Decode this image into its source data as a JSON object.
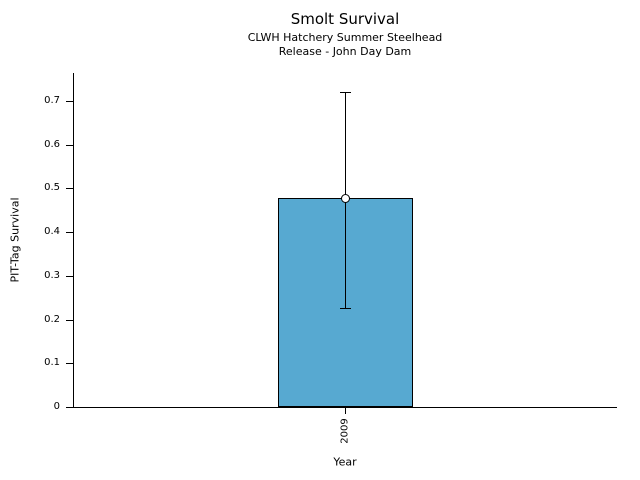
{
  "chart_data": {
    "type": "bar",
    "title": "Smolt Survival",
    "subtitle1": "CLWH Hatchery Summer Steelhead",
    "subtitle2": "Release - John Day Dam",
    "xlabel": "Year",
    "ylabel": "PIT-Tag Survival",
    "categories": [
      "2009"
    ],
    "values": [
      0.478
    ],
    "error_low": [
      0.226
    ],
    "error_high": [
      0.721
    ],
    "ylim": [
      0,
      0.764
    ],
    "yticks": [
      0,
      0.1,
      0.2,
      0.3,
      0.4,
      0.5,
      0.6,
      0.7
    ],
    "ytick_labels": [
      "0",
      "0.1",
      "0.2",
      "0.3",
      "0.4",
      "0.5",
      "0.6",
      "0.7"
    ],
    "grid": false,
    "legend": false,
    "colors": {
      "bar_fill": "#57A9D1",
      "bar_edge": "#000000",
      "axis": "#000000",
      "text": "#000000",
      "marker_fill": "#ffffff",
      "marker_edge": "#000000",
      "background": "#ffffff"
    }
  }
}
